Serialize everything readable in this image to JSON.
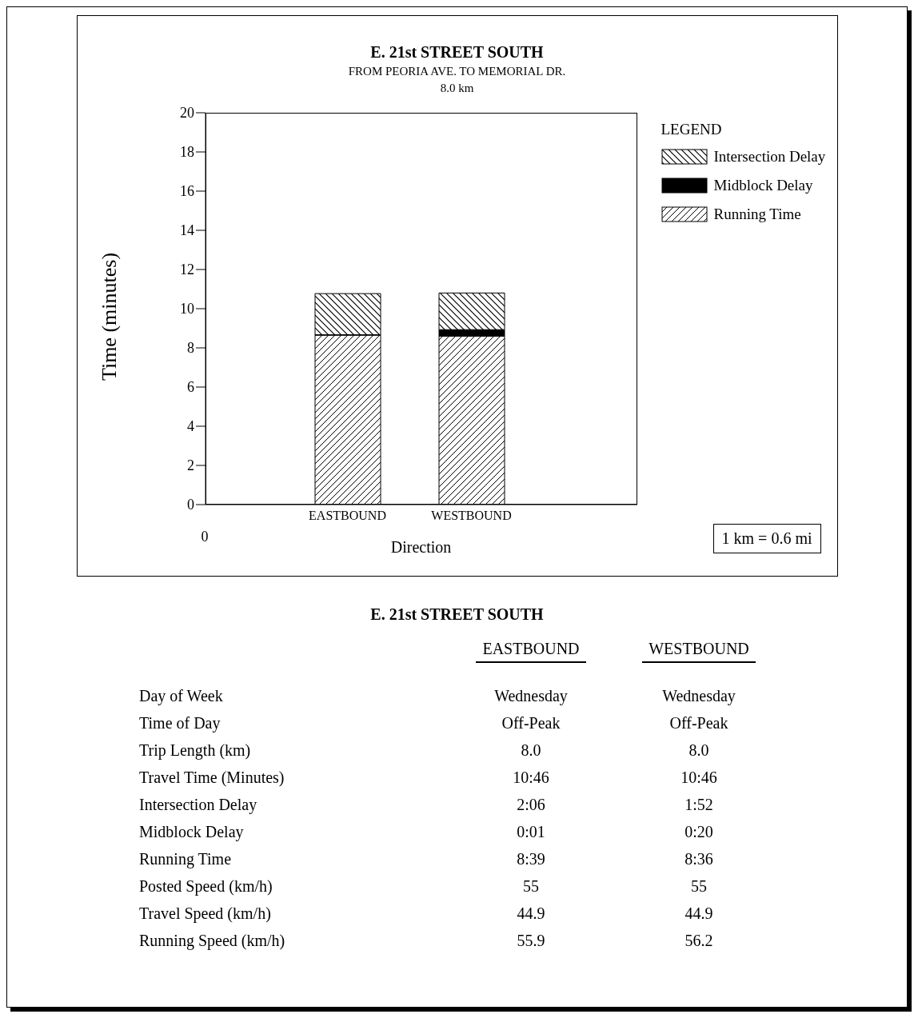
{
  "chart_data": [
    {
      "type": "bar",
      "title": "E. 21st STREET SOUTH",
      "subtitle": "FROM PEORIA AVE. TO MEMORIAL DR.",
      "xlabel": "Direction",
      "ylabel": "Time (minutes)",
      "legend_title": "LEGEND",
      "legend": "right",
      "stacked": true,
      "categories": [
        "EASTBOUND",
        "WESTBOUND"
      ],
      "series": [
        {
          "name": "Running Time",
          "color": "#000000",
          "values": [
            8.65,
            8.6
          ]
        },
        {
          "name": "Midblock Delay",
          "color": "#000000",
          "values": [
            0.02,
            0.33
          ]
        },
        {
          "name": "Intersection Delay",
          "color": "#000000",
          "values": [
            2.1,
            1.87
          ]
        }
      ],
      "ylim": [
        0,
        20
      ],
      "yticks": [
        0,
        2,
        4,
        6,
        8,
        10,
        12,
        14,
        16,
        18,
        20
      ],
      "annotations": [
        "8.0 km",
        "0",
        "1 km = 0.6 mi"
      ]
    },
    {
      "type": "other",
      "title": "E. 21st STREET SOUTH",
      "categories": [
        "EASTBOUND",
        "WESTBOUND"
      ],
      "y_categories": [
        "Day of Week",
        "Time of Day",
        "Trip Length (km)",
        "Travel Time (Minutes)",
        "Intersection Delay",
        "Midblock Delay",
        "Running Time",
        "Posted Speed (km/h)",
        "Travel Speed (km/h)",
        "Running Speed (km/h)"
      ],
      "cell_labels": [
        [
          "Wednesday",
          "Wednesday"
        ],
        [
          "Off-Peak",
          "Off-Peak"
        ],
        [
          "8.0",
          "8.0"
        ],
        [
          "10:46",
          "10:46"
        ],
        [
          "2:06",
          "1:52"
        ],
        [
          "0:01",
          "0:20"
        ],
        [
          "8:39",
          "8:36"
        ],
        [
          "55",
          "55"
        ],
        [
          "44.9",
          "44.9"
        ],
        [
          "55.9",
          "56.2"
        ]
      ]
    }
  ]
}
